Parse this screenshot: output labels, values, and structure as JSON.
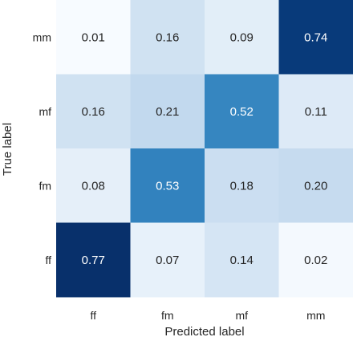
{
  "chart_data": {
    "type": "heatmap",
    "title": "",
    "xlabel": "Predicted label",
    "ylabel": "True label",
    "x_categories": [
      "ff",
      "fm",
      "mf",
      "mm"
    ],
    "y_categories": [
      "mm",
      "mf",
      "fm",
      "ff"
    ],
    "values": [
      [
        0.01,
        0.16,
        0.09,
        0.74
      ],
      [
        0.16,
        0.21,
        0.52,
        0.11
      ],
      [
        0.08,
        0.53,
        0.18,
        0.2
      ],
      [
        0.77,
        0.07,
        0.14,
        0.02
      ]
    ],
    "value_format": "0.00",
    "colormap": "Blues",
    "vmin": 0.01,
    "vmax": 0.77,
    "colorbar": false,
    "grid": false
  }
}
